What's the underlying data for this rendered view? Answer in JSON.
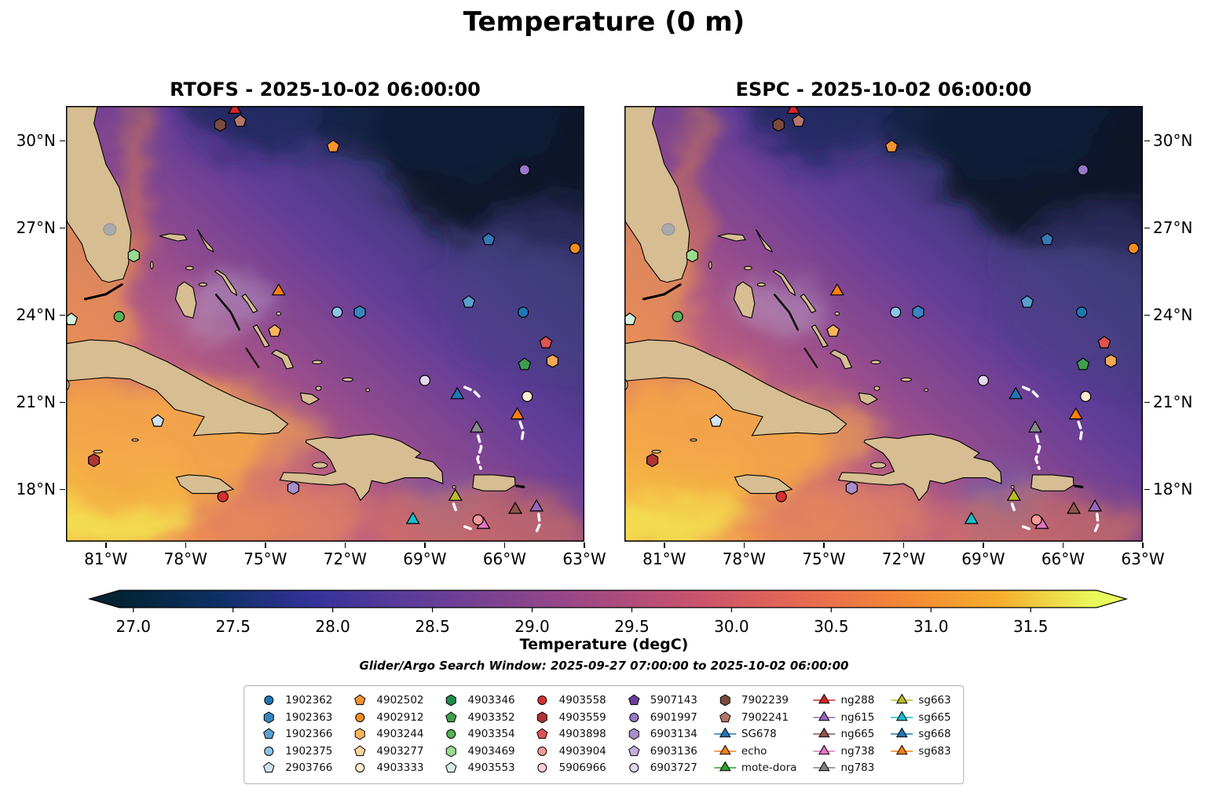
{
  "figure": {
    "title": "Temperature (0 m)"
  },
  "panels": [
    {
      "title": "RTOFS - 2025-10-02 06:00:00"
    },
    {
      "title": "ESPC - 2025-10-02 06:00:00"
    }
  ],
  "axes": {
    "x_ticks": [
      "81°W",
      "78°W",
      "75°W",
      "72°W",
      "69°W",
      "66°W",
      "63°W"
    ],
    "x_tick_lons": [
      -81,
      -78,
      -75,
      -72,
      -69,
      -66,
      -63
    ],
    "y_ticks": [
      "30°N",
      "27°N",
      "24°N",
      "21°N",
      "18°N"
    ],
    "y_tick_lats": [
      30,
      27,
      24,
      21,
      18
    ],
    "lon_min": -82.5,
    "lon_max": -63.0,
    "lat_min": 16.2,
    "lat_max": 31.2
  },
  "colorbar": {
    "label": "Temperature (degC)",
    "ticks": [
      "27.0",
      "27.5",
      "28.0",
      "28.5",
      "29.0",
      "29.5",
      "30.0",
      "30.5",
      "31.0",
      "31.5"
    ],
    "tick_values": [
      27.0,
      27.5,
      28.0,
      28.5,
      29.0,
      29.5,
      30.0,
      30.5,
      31.0,
      31.5
    ],
    "value_min": 26.93,
    "value_max": 31.83,
    "stops": [
      [
        0,
        "#042333"
      ],
      [
        0.1,
        "#0d3064"
      ],
      [
        0.2,
        "#35329b"
      ],
      [
        0.3,
        "#5e3c99"
      ],
      [
        0.4,
        "#83438f"
      ],
      [
        0.5,
        "#a94a80"
      ],
      [
        0.6,
        "#cc556b"
      ],
      [
        0.7,
        "#e66952"
      ],
      [
        0.8,
        "#f38737"
      ],
      [
        0.9,
        "#f6ae2d"
      ],
      [
        1,
        "#e8fa5b"
      ]
    ],
    "under_color": "#042333",
    "over_color": "#e8fa5b"
  },
  "search_window": "Glider/Argo Search Window: 2025-09-27 07:00:00 to 2025-10-02 06:00:00",
  "map_style": {
    "land_color": "#d6bd92",
    "coast_color": "#000000",
    "track_color": "#ffffff",
    "lake_color": "#a9a9ad"
  },
  "map_style_variants": [
    {
      "turbulence_seed": 4,
      "eddy_opacity": 0.55
    },
    {
      "turbulence_seed": 11,
      "eddy_opacity": 0.9
    }
  ],
  "legend": {
    "columns": [
      [
        {
          "label": "1902362",
          "shape": "circle",
          "color": "#1f77b4"
        },
        {
          "label": "1902363",
          "shape": "hexagon",
          "color": "#3a86c0"
        },
        {
          "label": "1902366",
          "shape": "pentagon",
          "color": "#5aa0cf"
        },
        {
          "label": "1902375",
          "shape": "circle",
          "color": "#8ec4e8"
        },
        {
          "label": "2903766",
          "shape": "pentagon",
          "color": "#cfe3f2"
        }
      ],
      [
        {
          "label": "4902502",
          "shape": "pentagon",
          "color": "#f59331"
        },
        {
          "label": "4902912",
          "shape": "circle",
          "color": "#ef8f1f"
        },
        {
          "label": "4903244",
          "shape": "hexagon",
          "color": "#f9b45c"
        },
        {
          "label": "4903277",
          "shape": "pentagon",
          "color": "#fbd39b"
        },
        {
          "label": "4903333",
          "shape": "circle",
          "color": "#fdeccf"
        }
      ],
      [
        {
          "label": "4903346",
          "shape": "hexagon",
          "color": "#1e8b4a"
        },
        {
          "label": "4903352",
          "shape": "pentagon",
          "color": "#3f9e4d"
        },
        {
          "label": "4903354",
          "shape": "circle",
          "color": "#56b356"
        },
        {
          "label": "4903469",
          "shape": "hexagon",
          "color": "#9bdb8f"
        },
        {
          "label": "4903553",
          "shape": "pentagon",
          "color": "#d4f0da"
        }
      ],
      [
        {
          "label": "4903558",
          "shape": "circle",
          "color": "#d62f2f"
        },
        {
          "label": "4903559",
          "shape": "hexagon",
          "color": "#b03535"
        },
        {
          "label": "4903898",
          "shape": "pentagon",
          "color": "#e05252"
        },
        {
          "label": "4903904",
          "shape": "circle",
          "color": "#f79a9a"
        },
        {
          "label": "5906966",
          "shape": "circle",
          "color": "#fbd0cd"
        }
      ],
      [
        {
          "label": "5907143",
          "shape": "pentagon",
          "color": "#6a3d9a"
        },
        {
          "label": "6901997",
          "shape": "circle",
          "color": "#9a77c8"
        },
        {
          "label": "6903134",
          "shape": "hexagon",
          "color": "#a98fc9"
        },
        {
          "label": "6903136",
          "shape": "pentagon",
          "color": "#c5aede"
        },
        {
          "label": "6903727",
          "shape": "circle",
          "color": "#e3d7ee"
        }
      ],
      [
        {
          "label": "7902239",
          "shape": "hexagon",
          "color": "#7a4a3e"
        },
        {
          "label": "7902241",
          "shape": "pentagon",
          "color": "#b5766a"
        },
        {
          "label": "SG678",
          "shape": "triangle",
          "color": "#1f77b4",
          "line": true
        },
        {
          "label": "echo",
          "shape": "triangle",
          "color": "#ff7f0e",
          "line": true
        },
        {
          "label": "mote-dora",
          "shape": "triangle",
          "color": "#2ca02c",
          "line": true
        }
      ],
      [
        {
          "label": "ng288",
          "shape": "triangle",
          "color": "#d62728",
          "line": true
        },
        {
          "label": "ng615",
          "shape": "triangle",
          "color": "#9467bd",
          "line": true
        },
        {
          "label": "ng665",
          "shape": "triangle",
          "color": "#8c564b",
          "line": true
        },
        {
          "label": "ng738",
          "shape": "triangle",
          "color": "#e377c2",
          "line": true
        },
        {
          "label": "ng783",
          "shape": "triangle",
          "color": "#7f7f7f",
          "line": true
        }
      ],
      [
        {
          "label": "sg663",
          "shape": "triangle",
          "color": "#bcbd22",
          "line": true
        },
        {
          "label": "sg665",
          "shape": "triangle",
          "color": "#17becf",
          "line": true
        },
        {
          "label": "sg668",
          "shape": "triangle",
          "color": "#1f77b4",
          "line": true
        },
        {
          "label": "sg683",
          "shape": "triangle",
          "color": "#ff7f0e",
          "line": true
        }
      ]
    ]
  },
  "markers": [
    {
      "shape": "triangle",
      "color": "#d62728",
      "lon": -76.15,
      "lat": 31.07,
      "kind": "glider"
    },
    {
      "shape": "hexagon",
      "color": "#7a4a3e",
      "lon": -76.7,
      "lat": 30.55,
      "kind": "float"
    },
    {
      "shape": "pentagon",
      "color": "#b5766a",
      "lon": -75.95,
      "lat": 30.68,
      "kind": "float"
    },
    {
      "shape": "pentagon",
      "color": "#f59331",
      "lon": -72.45,
      "lat": 29.8,
      "kind": "float"
    },
    {
      "shape": "circle",
      "color": "#9a77c8",
      "lon": -65.25,
      "lat": 29.0,
      "kind": "float"
    },
    {
      "shape": "pentagon",
      "color": "#3579b5",
      "lon": -66.6,
      "lat": 26.6,
      "kind": "float"
    },
    {
      "shape": "circle",
      "color": "#ef8f1f",
      "lon": -63.35,
      "lat": 26.3,
      "kind": "float"
    },
    {
      "shape": "hexagon",
      "color": "#9bdb8f",
      "lon": -79.95,
      "lat": 26.05,
      "kind": "float"
    },
    {
      "shape": "triangle",
      "color": "#ff7f0e",
      "lon": -74.5,
      "lat": 24.82,
      "kind": "glider"
    },
    {
      "shape": "circle",
      "color": "#8ec4e8",
      "lon": -72.3,
      "lat": 24.1,
      "kind": "float"
    },
    {
      "shape": "hexagon",
      "color": "#3a86c0",
      "lon": -71.45,
      "lat": 24.1,
      "kind": "float"
    },
    {
      "shape": "pentagon",
      "color": "#5aa0cf",
      "lon": -67.35,
      "lat": 24.45,
      "kind": "float"
    },
    {
      "shape": "circle",
      "color": "#1f77b4",
      "lon": -65.3,
      "lat": 24.1,
      "kind": "float"
    },
    {
      "shape": "pentagon",
      "color": "#d4f0da",
      "lon": -82.3,
      "lat": 23.85,
      "kind": "float"
    },
    {
      "shape": "circle",
      "color": "#56b356",
      "lon": -80.5,
      "lat": 23.95,
      "kind": "float"
    },
    {
      "shape": "pentagon",
      "color": "#f9b45c",
      "lon": -74.65,
      "lat": 23.45,
      "kind": "float"
    },
    {
      "shape": "pentagon",
      "color": "#e05252",
      "lon": -64.45,
      "lat": 23.05,
      "kind": "float"
    },
    {
      "shape": "pentagon",
      "color": "#3f9e4d",
      "lon": -65.25,
      "lat": 22.3,
      "kind": "float"
    },
    {
      "shape": "hexagon",
      "color": "#f4a952",
      "lon": -64.2,
      "lat": 22.42,
      "kind": "float"
    },
    {
      "shape": "circle",
      "color": "#e3d7ee",
      "lon": -69.0,
      "lat": 21.75,
      "kind": "float"
    },
    {
      "shape": "triangle",
      "color": "#1f77b4",
      "lon": -67.78,
      "lat": 21.25,
      "kind": "glider"
    },
    {
      "shape": "circle",
      "color": "#fdeccf",
      "lon": -65.15,
      "lat": 21.2,
      "kind": "float"
    },
    {
      "shape": "triangle",
      "color": "#ff7f0e",
      "lon": -65.52,
      "lat": 20.55,
      "kind": "glider"
    },
    {
      "shape": "triangle",
      "color": "#8a8a8a",
      "lon": -67.05,
      "lat": 20.1,
      "kind": "glider"
    },
    {
      "shape": "pentagon",
      "color": "#cfe3f2",
      "lon": -79.05,
      "lat": 20.35,
      "kind": "float"
    },
    {
      "shape": "hexagon",
      "color": "#b03535",
      "lon": -81.45,
      "lat": 19.0,
      "kind": "float"
    },
    {
      "shape": "circle",
      "color": "#d62f2f",
      "lon": -76.6,
      "lat": 17.75,
      "kind": "float"
    },
    {
      "shape": "hexagon",
      "color": "#a98fc9",
      "lon": -73.95,
      "lat": 18.05,
      "kind": "float"
    },
    {
      "shape": "triangle",
      "color": "#bcbd22",
      "lon": -67.85,
      "lat": 17.75,
      "kind": "glider"
    },
    {
      "shape": "triangle",
      "color": "#17becf",
      "lon": -69.45,
      "lat": 16.95,
      "kind": "glider"
    },
    {
      "shape": "triangle",
      "color": "#e377c2",
      "lon": -66.8,
      "lat": 16.78,
      "kind": "glider"
    },
    {
      "shape": "circle",
      "color": "#f79a9a",
      "lon": -67.0,
      "lat": 16.95,
      "kind": "float"
    },
    {
      "shape": "triangle",
      "color": "#8c564b",
      "lon": -65.6,
      "lat": 17.3,
      "kind": "glider"
    },
    {
      "shape": "triangle",
      "color": "#9467bd",
      "lon": -64.8,
      "lat": 17.38,
      "kind": "glider"
    }
  ],
  "tracks": [
    {
      "points": [
        [
          -67.5,
          21.52
        ],
        [
          -67.15,
          21.38
        ],
        [
          -66.85,
          21.1
        ]
      ]
    },
    {
      "points": [
        [
          -65.42,
          20.32
        ],
        [
          -65.3,
          20.0
        ],
        [
          -65.35,
          19.72
        ]
      ]
    },
    {
      "points": [
        [
          -67.0,
          19.85
        ],
        [
          -66.88,
          19.45
        ],
        [
          -67.02,
          19.05
        ],
        [
          -66.9,
          18.72
        ]
      ]
    },
    {
      "points": [
        [
          -64.72,
          17.15
        ],
        [
          -64.68,
          16.8
        ],
        [
          -64.82,
          16.5
        ]
      ]
    },
    {
      "points": [
        [
          -67.5,
          16.72
        ],
        [
          -67.15,
          16.6
        ]
      ]
    },
    {
      "points": [
        [
          -67.92,
          17.5
        ],
        [
          -67.8,
          17.2
        ]
      ]
    }
  ],
  "chart_data": {
    "type": "heatmap",
    "title": "Temperature (0 m)",
    "panels": [
      "RTOFS - 2025-10-02 06:00:00",
      "ESPC - 2025-10-02 06:00:00"
    ],
    "variable": "Temperature (degC)",
    "colorbar_ticks": [
      27.0,
      27.5,
      28.0,
      28.5,
      29.0,
      29.5,
      30.0,
      30.5,
      31.0,
      31.5
    ],
    "colorbar_extend": "both",
    "x_tick_labels": [
      "81°W",
      "78°W",
      "75°W",
      "72°W",
      "69°W",
      "66°W",
      "63°W"
    ],
    "y_tick_labels": [
      "30°N",
      "27°N",
      "24°N",
      "21°N",
      "18°N"
    ],
    "lon_range": [
      -82.5,
      -63.0
    ],
    "lat_range": [
      16.2,
      31.2
    ],
    "field_description": "Sea surface temperature: warm 30-31.5 degC in NW Caribbean / south of Cuba, ~29 degC mid-basin, cold 27-27.5 degC in NE Atlantic corner",
    "legend_groups": {
      "argo_floats": [
        "1902362",
        "1902363",
        "1902366",
        "1902375",
        "2903766",
        "4902502",
        "4902912",
        "4903244",
        "4903277",
        "4903333",
        "4903346",
        "4903352",
        "4903354",
        "4903469",
        "4903553",
        "4903558",
        "4903559",
        "4903898",
        "4903904",
        "5906966",
        "5907143",
        "6901997",
        "6903134",
        "6903136",
        "6903727",
        "7902239",
        "7902241"
      ],
      "gliders": [
        "SG678",
        "echo",
        "mote-dora",
        "ng288",
        "ng615",
        "ng665",
        "ng738",
        "ng783",
        "sg663",
        "sg665",
        "sg668",
        "sg683"
      ]
    }
  }
}
